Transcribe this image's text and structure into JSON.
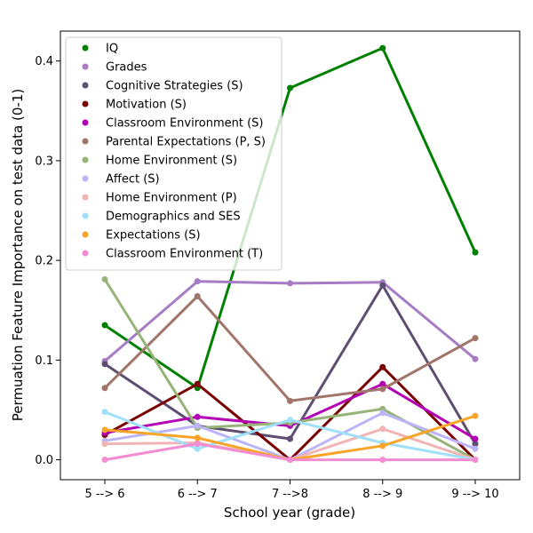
{
  "chart_data": {
    "type": "line",
    "title": "",
    "xlabel": "School year (grade)",
    "ylabel": "Permuation Feature Importance on test data (0-1)",
    "categories": [
      "5 --> 6",
      "6 --> 7",
      "7 -->8",
      "8 --> 9",
      "9 --> 10"
    ],
    "ylim": [
      -0.02,
      0.43
    ],
    "yticks": [
      "0.0",
      "0.1",
      "0.2",
      "0.3",
      "0.4"
    ],
    "grid": false,
    "legend_position": "top-left",
    "series": [
      {
        "name": "IQ",
        "color": "#008000",
        "values": [
          0.135,
          0.072,
          0.373,
          0.413,
          0.208
        ]
      },
      {
        "name": "Grades",
        "color": "#a67cc4",
        "values": [
          0.099,
          0.179,
          0.177,
          0.178,
          0.101
        ]
      },
      {
        "name": "Cognitive Strategies (S)",
        "color": "#5e4f72",
        "values": [
          0.096,
          0.034,
          0.021,
          0.175,
          0.016
        ]
      },
      {
        "name": "Motivation (S)",
        "color": "#7a0000",
        "values": [
          0.025,
          0.076,
          0.0,
          0.093,
          0.0
        ]
      },
      {
        "name": "Classroom Environment (S)",
        "color": "#b400b4",
        "values": [
          0.027,
          0.043,
          0.034,
          0.076,
          0.021
        ]
      },
      {
        "name": "Parental Expectations (P, S)",
        "color": "#a0756a",
        "values": [
          0.072,
          0.164,
          0.059,
          0.071,
          0.122
        ]
      },
      {
        "name": "Home Environment (S)",
        "color": "#96b478",
        "values": [
          0.181,
          0.032,
          0.037,
          0.051,
          0.0
        ]
      },
      {
        "name": "Affect (S)",
        "color": "#bbb4f8",
        "values": [
          0.019,
          0.034,
          0.0,
          0.047,
          0.011
        ]
      },
      {
        "name": "Home Environment (P)",
        "color": "#f0b4b4",
        "values": [
          0.016,
          0.017,
          0.0,
          0.031,
          0.0
        ]
      },
      {
        "name": "Demographics and SES",
        "color": "#a0e0fa",
        "values": [
          0.048,
          0.011,
          0.04,
          0.017,
          0.0
        ]
      },
      {
        "name": "Expectations (S)",
        "color": "#f8a428",
        "values": [
          0.03,
          0.022,
          0.0,
          0.014,
          0.044
        ]
      },
      {
        "name": "Classroom Environment (T)",
        "color": "#f48cd2",
        "values": [
          0.0,
          0.016,
          0.0,
          0.0,
          0.0
        ]
      }
    ]
  }
}
